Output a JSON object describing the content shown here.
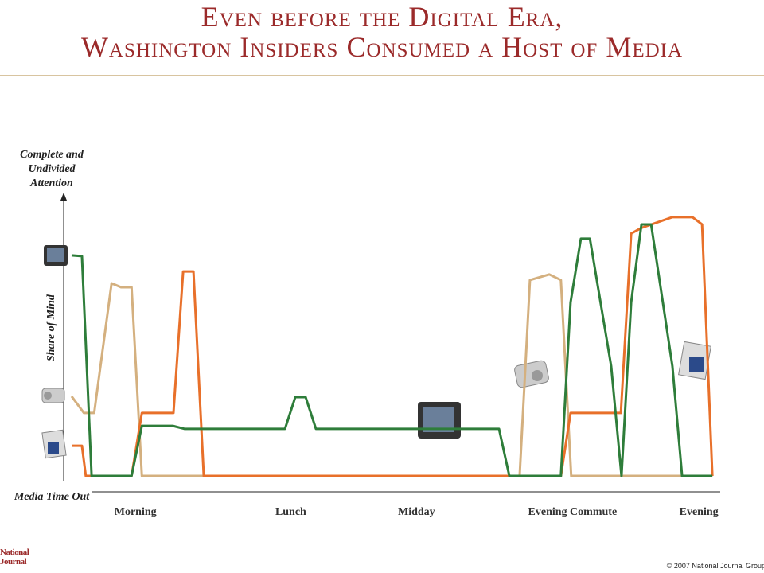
{
  "chart_data": {
    "type": "line",
    "title": [
      "Even before the Digital Era,",
      "Washington Insiders Consumed a Host of Media"
    ],
    "y_label": "Share of Mind",
    "xlim": [
      0,
      100
    ],
    "ylim": [
      0,
      100
    ],
    "xticks": [
      {
        "value": 9.9,
        "label": "Morning"
      },
      {
        "value": 34,
        "label": "Lunch"
      },
      {
        "value": 53.5,
        "label": "Midday"
      },
      {
        "value": 77.7,
        "label": "Evening Commute"
      },
      {
        "value": 97.3,
        "label": "Evening"
      }
    ],
    "yticks": [
      {
        "value": 0,
        "label": "Media Time Out"
      },
      {
        "value": 100,
        "label": "Complete and Undivided Attention"
      }
    ],
    "series": [
      {
        "color": "#d4b07f",
        "x": [
          0,
          1.9,
          3.5,
          6.2,
          7.7,
          9.3,
          10.9,
          69.5,
          71.1,
          74.1,
          75.9,
          77.5,
          99.4
        ],
        "values": [
          29.6,
          23.4,
          23.4,
          71.6,
          70.1,
          70.1,
          0,
          0,
          72.8,
          74.9,
          72.8,
          0,
          0
        ]
      },
      {
        "color": "#e8702a",
        "x": [
          0,
          1.6,
          2.2,
          9.3,
          10.9,
          15.8,
          17.3,
          18.9,
          20.5,
          75.9,
          77.4,
          85.2,
          86.8,
          88.4,
          93.2,
          96.3,
          97.8,
          99.4
        ],
        "values": [
          11.2,
          11.2,
          0,
          0,
          23.4,
          23.4,
          76,
          76,
          0,
          0,
          23.4,
          23.4,
          90.1,
          92.2,
          96.2,
          96.2,
          93.5,
          0
        ]
      },
      {
        "color": "#2e7d3a",
        "x": [
          0,
          1.6,
          3.1,
          9.3,
          10.9,
          15.7,
          17.5,
          33.1,
          34.7,
          36.3,
          37.9,
          66.3,
          67.9,
          75.9,
          77.4,
          79,
          80.4,
          83.7,
          85.3,
          86.8,
          88.4,
          89.9,
          93.2,
          94.7,
          99.4
        ],
        "values": [
          82,
          81.7,
          0,
          0,
          18.6,
          18.6,
          17.5,
          17.5,
          29.3,
          29.3,
          17.5,
          17.5,
          0,
          0,
          64.5,
          88.2,
          88.2,
          40.8,
          0,
          64.5,
          93.5,
          93.5,
          40.8,
          0,
          0
        ]
      }
    ],
    "footer": "© 2007 National Journal Group",
    "logo": "National Journal"
  }
}
